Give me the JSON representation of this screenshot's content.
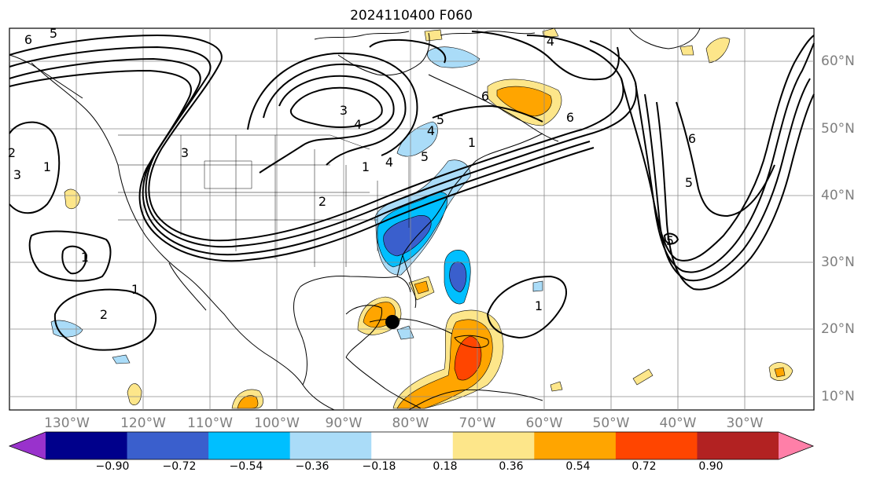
{
  "title": "2024110400 F060",
  "longitude_labels": [
    "130°W",
    "120°W",
    "110°W",
    "100°W",
    "90°W",
    "80°W",
    "70°W",
    "60°W",
    "50°W",
    "40°W",
    "30°W"
  ],
  "latitude_labels": [
    "60°N",
    "50°N",
    "40°N",
    "30°N",
    "20°N",
    "10°N"
  ],
  "contour_labels": [
    "6",
    "5",
    "4",
    "3",
    "4",
    "5",
    "6",
    "1",
    "2",
    "3",
    "1",
    "4",
    "3",
    "2",
    "1",
    "2",
    "1",
    "6",
    "5",
    "5",
    "1",
    "1",
    "4",
    "5",
    "6"
  ],
  "colorbar": {
    "ticks": [
      "−0.90",
      "−0.72",
      "−0.54",
      "−0.36",
      "−0.18",
      "0.18",
      "0.36",
      "0.54",
      "0.72",
      "0.90"
    ],
    "colors": [
      "#9932cc",
      "#00008b",
      "#3a5fcd",
      "#00bfff",
      "#aadcf8",
      "#ffffff",
      "#fde68a",
      "#ffa500",
      "#ff4500",
      "#b22222",
      "#ff7fa8"
    ]
  },
  "palette": {
    "neg_dark": "#3a5fcd",
    "neg_mid": "#00bfff",
    "neg_light": "#aadcf8",
    "pos_light": "#fde68a",
    "pos_mid": "#ffa500",
    "pos_strong": "#ff4500"
  },
  "marker": "storm-center-dot"
}
